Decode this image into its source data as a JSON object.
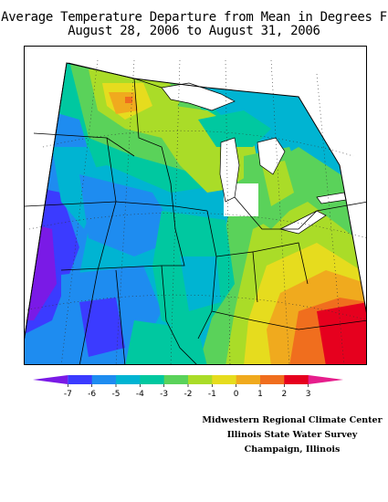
{
  "title": {
    "line1": "Average Temperature Departure from Mean in Degrees F",
    "line2": "August 28, 2006 to August 31, 2006"
  },
  "map": {
    "region": "Midwest United States",
    "variable": "Average temperature departure from mean",
    "units": "Degrees F"
  },
  "legend": {
    "ticks": [
      "-7",
      "-6",
      "-5",
      "-4",
      "-3",
      "-2",
      "-1",
      "0",
      "1",
      "2",
      "3"
    ],
    "colors": [
      "#7a1ae6",
      "#3b3bff",
      "#1e8cf0",
      "#00b4d2",
      "#00c8a0",
      "#5ad25a",
      "#aadc28",
      "#e6dc1e",
      "#f0aa1e",
      "#f06e1e",
      "#e6001e",
      "#e61e8c"
    ]
  },
  "credits": {
    "line1": "Midwestern Regional Climate Center",
    "line2": "Illinois State Water Survey",
    "line3": "Champaign, Illinois"
  }
}
